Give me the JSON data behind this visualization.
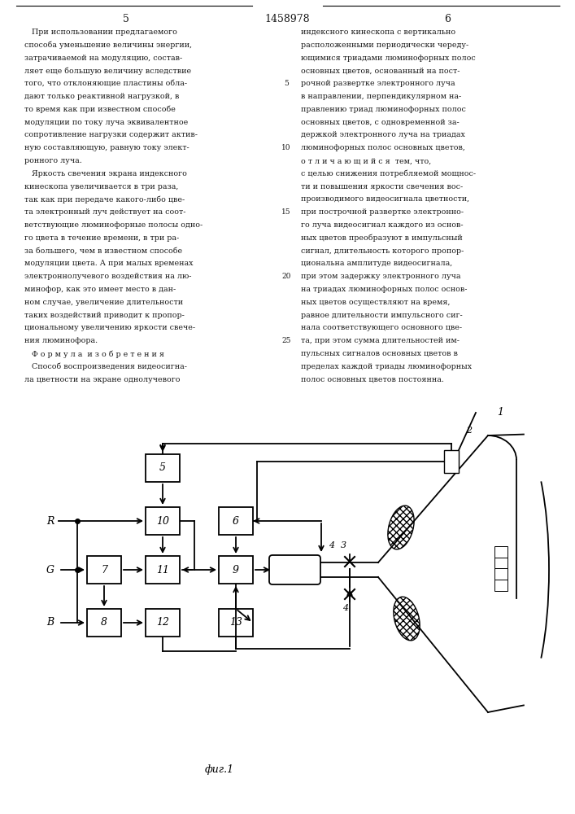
{
  "title": "1458978",
  "page_left": "5",
  "page_right": "6",
  "fig_label": "фиг.1",
  "text_left": [
    "   При использовании предлагаемого",
    "способа уменьшение величины энергии,",
    "затрачиваемой на модуляцию, состав-",
    "ляет еще большую величину вследствие",
    "того, что отклоняющие пластины обла-",
    "дают только реактивной нагрузкой, в",
    "то время как при известном способе",
    "модуляции по току луча эквивалентное",
    "сопротивление нагрузки содержит актив-",
    "ную составляющую, равную току элект-",
    "ронного луча.",
    "   Яркость свечения экрана индексного",
    "кинескопа увеличивается в три раза,",
    "так как при передаче какого-либо цве-",
    "та электронный луч действует на соот-",
    "ветствующие люминофорные полосы одно-",
    "го цвета в течение времени, в три ра-",
    "за большего, чем в известном способе",
    "модуляции цвета. А при малых временах",
    "электроннолучевого воздействия на лю-",
    "минофор, как это имеет место в дан-",
    "ном случае, увеличение длительности",
    "таких воздействий приводит к пропор-",
    "циональному увеличению яркости свече-",
    "ния люминофора.",
    "   Ф о р м у л а  и з о б р е т е н и я",
    "   Способ воспроизведения видеосигна-",
    "ла цветности на экране однолучевого"
  ],
  "text_right": [
    "индексного кинескопа с вертикально",
    "расположенными периодически череду-",
    "ющимися триадами люминофорных полос",
    "основных цветов, основанный на пост-",
    "рочной развертке электронного луча",
    "в направлении, перпендикулярном на-",
    "правлению триад люминофорных полос",
    "основных цветов, с одновременной за-",
    "держкой электронного луча на триадах",
    "люминофорных полос основных цветов,",
    "о т л и ч а ю щ и й с я  тем, что,",
    "с целью снижения потребляемой мощнос-",
    "ти и повышения яркости свечения вос-",
    "производимого видеосигнала цветности,",
    "при построчной развертке электронно-",
    "го луча видеосигнал каждого из основ-",
    "ных цветов преобразуют в импульсный",
    "сигнал, длительность которого пропор-",
    "циональна амплитуде видеосигнала,",
    "при этом задержку электронного луча",
    "на триадах люминофорных полос основ-",
    "ных цветов осуществляют на время,",
    "равное длительности импульсного сиг-",
    "нала соответствующего основного цве-",
    "та, при этом сумма длительностей им-",
    "пульсных сигналов основных цветов в",
    "пределах каждой триады люминофорных",
    "полос основных цветов постоянна."
  ],
  "background_color": "#ffffff",
  "text_color": "#1a1a1a",
  "line_color": "#000000"
}
